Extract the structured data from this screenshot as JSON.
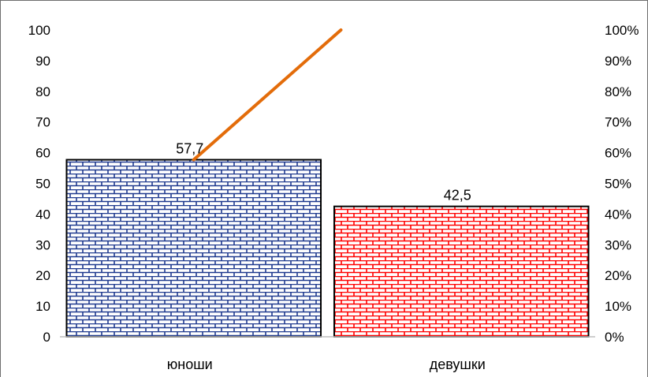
{
  "chart_data": {
    "type": "bar",
    "categories": [
      "юноши",
      "девушки"
    ],
    "values": [
      57.7,
      42.5
    ],
    "data_labels": [
      "57,7",
      "42,5"
    ],
    "ylim": [
      0,
      100
    ],
    "y_ticks": [
      0,
      10,
      20,
      30,
      40,
      50,
      60,
      70,
      80,
      90,
      100
    ],
    "y2lim": [
      0,
      1
    ],
    "y2_ticks": [
      0,
      0.1,
      0.2,
      0.3,
      0.4,
      0.5,
      0.6,
      0.7,
      0.8,
      0.9,
      1.0
    ],
    "y2_tick_labels": [
      "0%",
      "10%",
      "20%",
      "30%",
      "40%",
      "50%",
      "60%",
      "70%",
      "80%",
      "90%",
      "100%"
    ],
    "cumulative_line": {
      "x": [
        "юноши",
        "девушки"
      ],
      "y": [
        0.577,
        1.0
      ],
      "color": "#e36c0a"
    },
    "bar_colors": [
      "#1f3a8f",
      "#ff0000"
    ],
    "grid": false,
    "legend": "none"
  }
}
